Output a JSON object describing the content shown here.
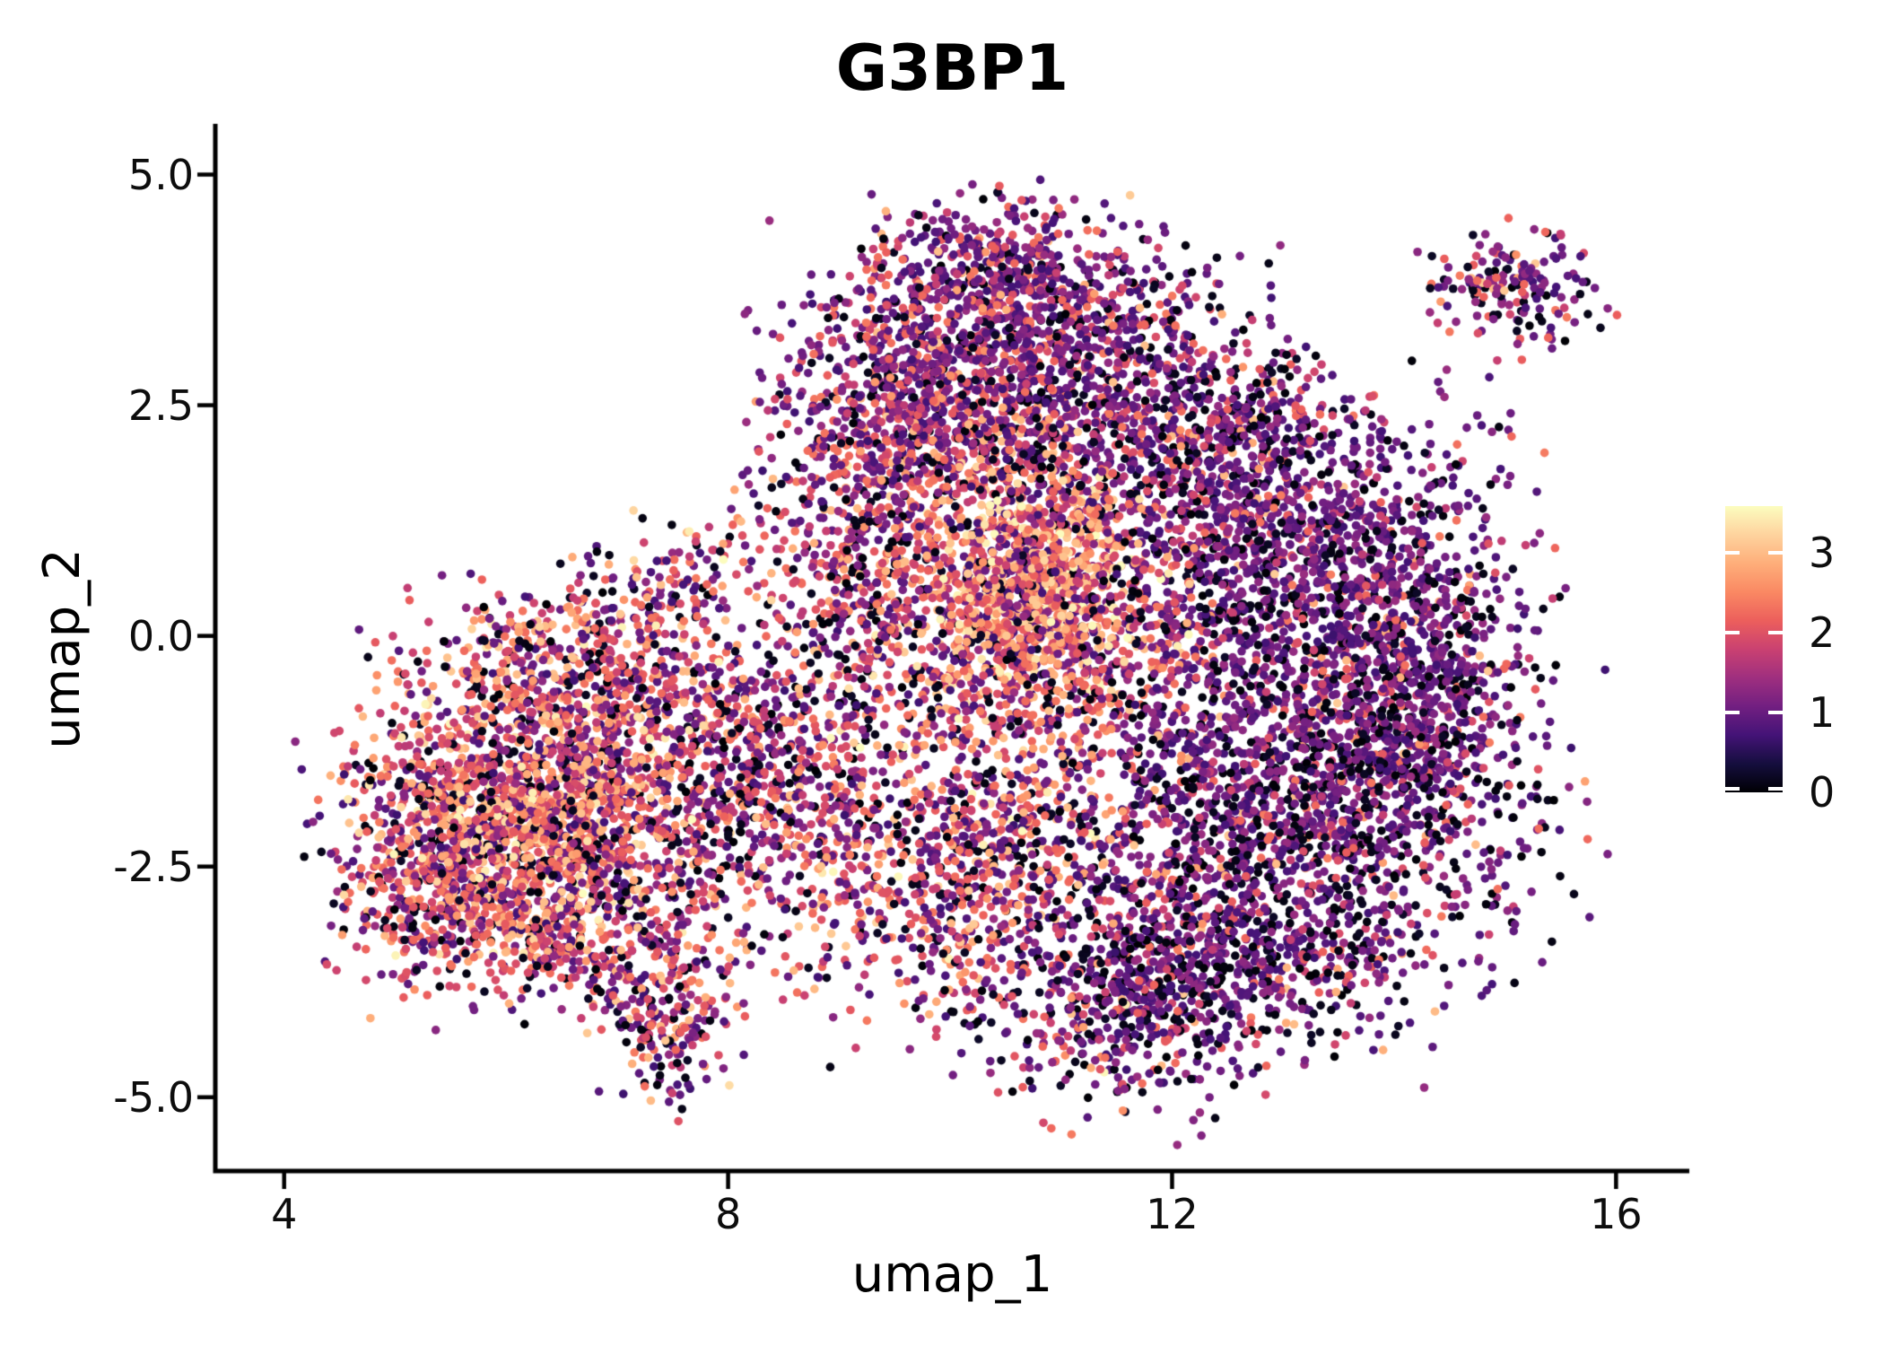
{
  "title": "G3BP1",
  "axes": {
    "x": {
      "label": "umap_1",
      "ticks": [
        {
          "v": 4,
          "label": "4"
        },
        {
          "v": 8,
          "label": "8"
        },
        {
          "v": 12,
          "label": "12"
        },
        {
          "v": 16,
          "label": "16"
        }
      ]
    },
    "y": {
      "label": "umap_2",
      "ticks": [
        {
          "v": 5.0,
          "label": "5.0"
        },
        {
          "v": 2.5,
          "label": "2.5"
        },
        {
          "v": 0.0,
          "label": "0.0"
        },
        {
          "v": -2.5,
          "label": "-2.5"
        },
        {
          "v": -5.0,
          "label": "-5.0"
        }
      ]
    }
  },
  "colorbar": {
    "vmin": 0,
    "vmax": 3.58,
    "labels": [
      {
        "v": 3,
        "label": "3"
      },
      {
        "v": 2,
        "label": "2"
      },
      {
        "v": 1,
        "label": "1"
      },
      {
        "v": 0,
        "label": "0"
      }
    ]
  },
  "chart_data": {
    "type": "scatter",
    "title": "G3BP1",
    "xlabel": "umap_1",
    "ylabel": "umap_2",
    "xlim": [
      3.38,
      16.66
    ],
    "ylim": [
      -5.8,
      5.55
    ],
    "x_ticks": [
      4,
      8,
      12,
      16
    ],
    "y_ticks": [
      5.0,
      2.5,
      0.0,
      -2.5,
      -5.0
    ],
    "grid": false,
    "legend_position": "right-colorbar",
    "colorbar_range": [
      0,
      3.58
    ],
    "point_radius_px": 4.8,
    "seed": 1337,
    "expression_bins": [
      [
        0,
        0.22
      ],
      [
        0.65,
        0.75
      ],
      [
        1.65,
        0.75
      ],
      [
        2.55,
        0.6
      ],
      [
        3.2,
        0.38
      ]
    ],
    "colormap_name": "magma",
    "colormap": [
      {
        "t": 0.0,
        "c": "#000004"
      },
      {
        "t": 0.1,
        "c": "#150e3e"
      },
      {
        "t": 0.2,
        "c": "#441377"
      },
      {
        "t": 0.3,
        "c": "#721f81"
      },
      {
        "t": 0.4,
        "c": "#9f2f7f"
      },
      {
        "t": 0.5,
        "c": "#ca4171"
      },
      {
        "t": 0.6,
        "c": "#ec5f5c"
      },
      {
        "t": 0.7,
        "c": "#fa8963"
      },
      {
        "t": 0.8,
        "c": "#feae7a"
      },
      {
        "t": 0.9,
        "c": "#fed39e"
      },
      {
        "t": 1.0,
        "c": "#fcfdbf"
      }
    ],
    "clusters": [
      {
        "name": "left-lobe-core",
        "cx": 6.25,
        "cy": -1.95,
        "sx": 0.8,
        "sy": 0.7,
        "n": 1400,
        "w": [
          0.12,
          0.26,
          0.37,
          0.2,
          0.05
        ]
      },
      {
        "name": "left-lobe-hotspot",
        "cx": 6.45,
        "cy": -2.0,
        "sx": 0.35,
        "sy": 0.3,
        "n": 180,
        "w": [
          0.05,
          0.1,
          0.3,
          0.43,
          0.12
        ]
      },
      {
        "name": "left-lobe-west",
        "cx": 5.35,
        "cy": -2.4,
        "sx": 0.4,
        "sy": 0.55,
        "n": 300,
        "w": [
          0.13,
          0.3,
          0.4,
          0.15,
          0.02
        ]
      },
      {
        "name": "left-west-tail",
        "cx": 4.88,
        "cy": -2.62,
        "sx": 0.12,
        "sy": 0.22,
        "n": 14,
        "w": [
          0.05,
          0.25,
          0.55,
          0.15,
          0.0
        ]
      },
      {
        "name": "left-lobe-north",
        "cx": 6.6,
        "cy": -0.55,
        "sx": 0.75,
        "sy": 0.5,
        "n": 520,
        "w": [
          0.13,
          0.3,
          0.37,
          0.17,
          0.03
        ]
      },
      {
        "name": "left-lobe-south",
        "cx": 6.3,
        "cy": -3.2,
        "sx": 0.7,
        "sy": 0.4,
        "n": 420,
        "w": [
          0.14,
          0.3,
          0.37,
          0.16,
          0.03
        ]
      },
      {
        "name": "nw-sparse-band",
        "cx": 7.15,
        "cy": 0.45,
        "sx": 1.05,
        "sy": 0.3,
        "n": 230,
        "w": [
          0.15,
          0.33,
          0.34,
          0.15,
          0.03
        ],
        "rot": 33
      },
      {
        "name": "left-bridge",
        "cx": 8.0,
        "cy": -1.5,
        "sx": 0.55,
        "sy": 0.85,
        "n": 500,
        "w": [
          0.17,
          0.36,
          0.32,
          0.13,
          0.02
        ]
      },
      {
        "name": "mid-sparse",
        "cx": 8.8,
        "cy": -1.7,
        "sx": 0.5,
        "sy": 0.95,
        "n": 330,
        "w": [
          0.2,
          0.4,
          0.29,
          0.1,
          0.01
        ]
      },
      {
        "name": "bottom-appendage",
        "cx": 7.45,
        "cy": -4.2,
        "sx": 0.3,
        "sy": 0.42,
        "n": 210,
        "w": [
          0.15,
          0.42,
          0.33,
          0.09,
          0.01
        ]
      },
      {
        "name": "west-junction",
        "cx": 9.3,
        "cy": 0.7,
        "sx": 0.55,
        "sy": 0.75,
        "n": 380,
        "w": [
          0.16,
          0.36,
          0.33,
          0.13,
          0.02
        ]
      },
      {
        "name": "junction-upper",
        "cx": 9.35,
        "cy": 2.2,
        "sx": 0.5,
        "sy": 0.6,
        "n": 330,
        "w": [
          0.16,
          0.45,
          0.3,
          0.08,
          0.01
        ]
      },
      {
        "name": "top-lobe-main",
        "cx": 10.25,
        "cy": 3.05,
        "sx": 0.8,
        "sy": 0.65,
        "n": 950,
        "w": [
          0.15,
          0.58,
          0.23,
          0.04,
          0.0
        ]
      },
      {
        "name": "top-lobe-peak",
        "cx": 10.5,
        "cy": 4.0,
        "sx": 0.55,
        "sy": 0.38,
        "n": 300,
        "w": [
          0.14,
          0.58,
          0.24,
          0.04,
          0.0
        ]
      },
      {
        "name": "top-lobe-ne",
        "cx": 11.75,
        "cy": 3.0,
        "sx": 0.6,
        "sy": 0.6,
        "n": 300,
        "w": [
          0.22,
          0.55,
          0.2,
          0.03,
          0.0
        ]
      },
      {
        "name": "central-hot-core",
        "cx": 10.8,
        "cy": 0.55,
        "sx": 0.45,
        "sy": 0.55,
        "n": 850,
        "w": [
          0.05,
          0.13,
          0.3,
          0.38,
          0.14
        ]
      },
      {
        "name": "central-hot-halo",
        "cx": 10.6,
        "cy": 0.0,
        "sx": 0.85,
        "sy": 0.95,
        "n": 900,
        "w": [
          0.11,
          0.24,
          0.37,
          0.24,
          0.04
        ]
      },
      {
        "name": "central-mid-band",
        "cx": 10.7,
        "cy": 1.95,
        "sx": 0.75,
        "sy": 0.5,
        "n": 400,
        "w": [
          0.15,
          0.4,
          0.32,
          0.12,
          0.01
        ]
      },
      {
        "name": "center-south",
        "cx": 10.3,
        "cy": -2.5,
        "sx": 0.8,
        "sy": 0.85,
        "n": 850,
        "w": [
          0.17,
          0.34,
          0.33,
          0.14,
          0.02
        ]
      },
      {
        "name": "bottom-tip",
        "cx": 11.55,
        "cy": -4.05,
        "sx": 0.55,
        "sy": 0.55,
        "n": 420,
        "w": [
          0.28,
          0.52,
          0.17,
          0.03,
          0.0
        ]
      },
      {
        "name": "right-mass-upper",
        "cx": 13.0,
        "cy": 1.0,
        "sx": 0.95,
        "sy": 0.8,
        "n": 1250,
        "w": [
          0.22,
          0.62,
          0.14,
          0.02,
          0.0
        ]
      },
      {
        "name": "right-mass-lower",
        "cx": 13.1,
        "cy": -1.6,
        "sx": 1.05,
        "sy": 1.0,
        "n": 1550,
        "w": [
          0.25,
          0.6,
          0.13,
          0.02,
          0.0
        ]
      },
      {
        "name": "right-mass-east",
        "cx": 14.2,
        "cy": -0.7,
        "sx": 0.5,
        "sy": 0.9,
        "n": 650,
        "w": [
          0.24,
          0.6,
          0.14,
          0.02,
          0.0
        ]
      },
      {
        "name": "right-mass-south",
        "cx": 12.7,
        "cy": -3.3,
        "sx": 0.85,
        "sy": 0.6,
        "n": 650,
        "w": [
          0.28,
          0.57,
          0.13,
          0.02,
          0.0
        ]
      },
      {
        "name": "right-mass-top",
        "cx": 12.5,
        "cy": 2.2,
        "sx": 0.6,
        "sy": 0.5,
        "n": 300,
        "w": [
          0.2,
          0.6,
          0.17,
          0.03,
          0.0
        ]
      },
      {
        "name": "top-right-island",
        "cx": 15.05,
        "cy": 3.75,
        "sx": 0.4,
        "sy": 0.3,
        "n": 170,
        "w": [
          0.25,
          0.5,
          0.22,
          0.03,
          0.0
        ]
      },
      {
        "name": "island-strays",
        "cx": 14.8,
        "cy": 2.55,
        "sx": 0.2,
        "sy": 0.35,
        "n": 7,
        "w": [
          0.1,
          0.5,
          0.4,
          0.0,
          0.0
        ]
      }
    ]
  }
}
